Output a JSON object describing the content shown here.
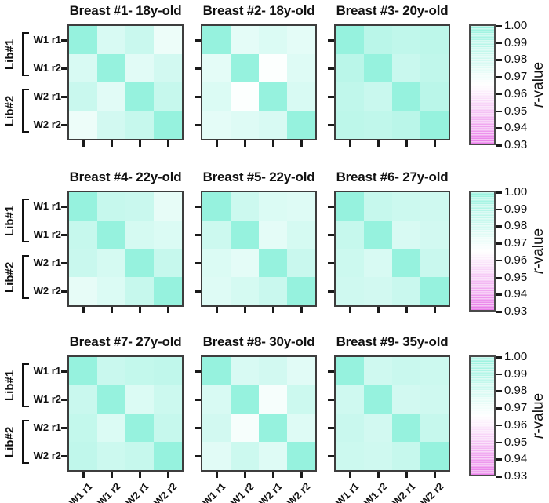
{
  "chart_data": {
    "type": "heatmap",
    "grid_rows": 3,
    "grid_cols": 3,
    "row_labels": [
      "W1 r1",
      "W1 r2",
      "W2 r1",
      "W2 r2"
    ],
    "col_labels": [
      "W1 r1",
      "W1 r2",
      "W2 r1",
      "W2 r2"
    ],
    "library_groups": [
      {
        "label": "Lib#1",
        "rows": [
          0,
          1
        ]
      },
      {
        "label": "Lib#2",
        "rows": [
          2,
          3
        ]
      }
    ],
    "colorbar": {
      "label_italic": "r",
      "label_rest": "-value",
      "tick_labels": [
        "1.00",
        "0.99",
        "0.98",
        "0.97",
        "0.96",
        "0.95",
        "0.94",
        "0.93"
      ],
      "tick_values": [
        1.0,
        0.99,
        0.98,
        0.97,
        0.96,
        0.95,
        0.94,
        0.93
      ],
      "value_range": [
        0.93,
        1.0
      ],
      "white_point": 0.965,
      "color_high": "#96F2DE",
      "color_mid": "#FFFFFF",
      "color_low": "#E97DE9"
    },
    "panels": [
      {
        "title": "Breast #1- 18y-old",
        "matrix": [
          [
            1.0,
            0.978,
            0.983,
            0.971
          ],
          [
            0.978,
            1.0,
            0.975,
            0.98
          ],
          [
            0.983,
            0.975,
            1.0,
            0.984
          ],
          [
            0.971,
            0.98,
            0.984,
            1.0
          ]
        ]
      },
      {
        "title": "Breast #2- 18y-old",
        "matrix": [
          [
            1.0,
            0.974,
            0.977,
            0.974
          ],
          [
            0.974,
            1.0,
            0.966,
            0.976
          ],
          [
            0.977,
            0.966,
            1.0,
            0.978
          ],
          [
            0.974,
            0.976,
            0.978,
            1.0
          ]
        ]
      },
      {
        "title": "Breast #3- 20y-old",
        "matrix": [
          [
            1.0,
            0.988,
            0.986,
            0.987
          ],
          [
            0.988,
            1.0,
            0.983,
            0.986
          ],
          [
            0.986,
            0.983,
            1.0,
            0.988
          ],
          [
            0.987,
            0.986,
            0.988,
            1.0
          ]
        ]
      },
      {
        "title": "Breast #4- 22y-old",
        "matrix": [
          [
            1.0,
            0.984,
            0.983,
            0.973
          ],
          [
            0.984,
            1.0,
            0.979,
            0.977
          ],
          [
            0.983,
            0.979,
            1.0,
            0.984
          ],
          [
            0.973,
            0.977,
            0.984,
            1.0
          ]
        ]
      },
      {
        "title": "Breast #5- 22y-old",
        "matrix": [
          [
            1.0,
            0.982,
            0.977,
            0.976
          ],
          [
            0.982,
            1.0,
            0.974,
            0.979
          ],
          [
            0.977,
            0.974,
            1.0,
            0.983
          ],
          [
            0.976,
            0.979,
            0.983,
            1.0
          ]
        ]
      },
      {
        "title": "Breast #6- 27y-old",
        "matrix": [
          [
            1.0,
            0.984,
            0.982,
            0.981
          ],
          [
            0.984,
            1.0,
            0.978,
            0.98
          ],
          [
            0.982,
            0.978,
            1.0,
            0.983
          ],
          [
            0.981,
            0.98,
            0.983,
            1.0
          ]
        ]
      },
      {
        "title": "Breast #7- 27y-old",
        "matrix": [
          [
            1.0,
            0.983,
            0.985,
            0.986
          ],
          [
            0.983,
            1.0,
            0.977,
            0.982
          ],
          [
            0.985,
            0.977,
            1.0,
            0.984
          ],
          [
            0.986,
            0.982,
            0.984,
            1.0
          ]
        ]
      },
      {
        "title": "Breast #8- 30y-old",
        "matrix": [
          [
            1.0,
            0.978,
            0.98,
            0.975
          ],
          [
            0.978,
            1.0,
            0.968,
            0.982
          ],
          [
            0.98,
            0.968,
            1.0,
            0.976
          ],
          [
            0.975,
            0.982,
            0.976,
            1.0
          ]
        ]
      },
      {
        "title": "Breast #9- 35y-old",
        "matrix": [
          [
            1.0,
            0.981,
            0.983,
            0.982
          ],
          [
            0.981,
            1.0,
            0.98,
            0.981
          ],
          [
            0.983,
            0.98,
            1.0,
            0.984
          ],
          [
            0.982,
            0.981,
            0.984,
            1.0
          ]
        ]
      }
    ]
  }
}
